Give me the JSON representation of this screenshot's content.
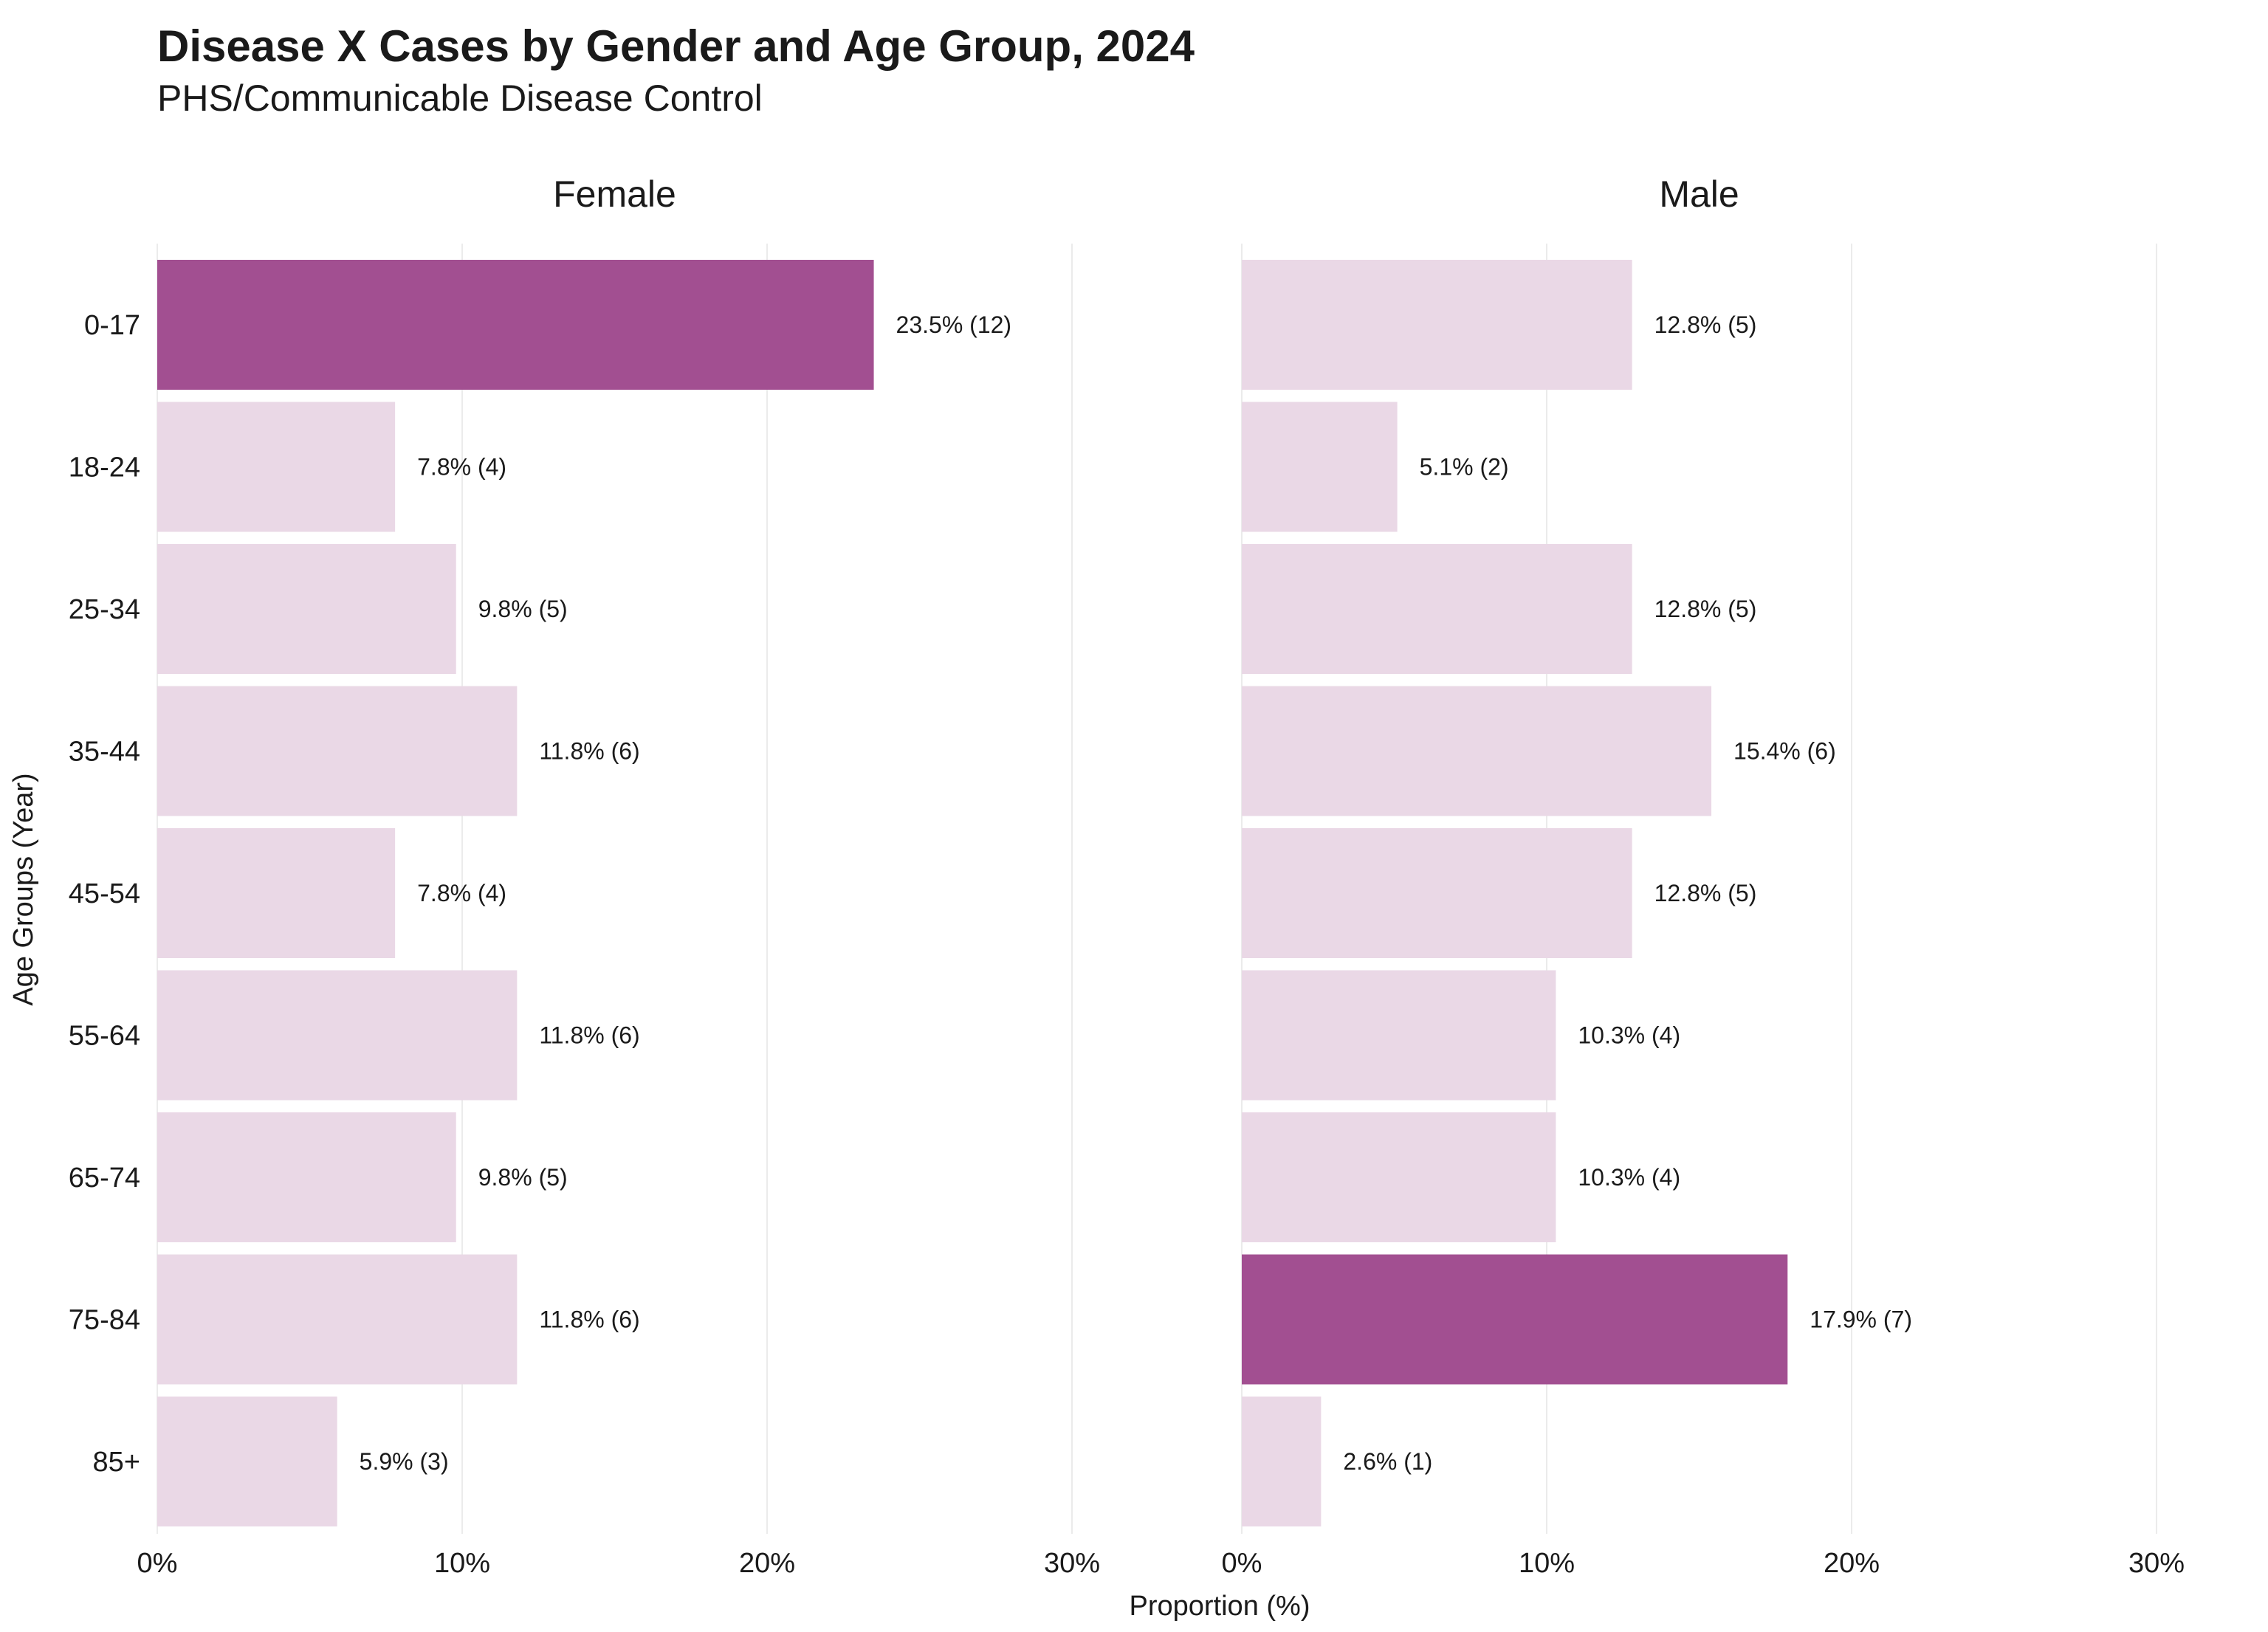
{
  "chart_data": {
    "type": "bar",
    "orientation": "horizontal",
    "title": "Disease X Cases by Gender and Age Group, 2024",
    "subtitle": "PHS/Communicable Disease Control",
    "xlabel": "Proportion (%)",
    "ylabel": "Age Groups (Year)",
    "xlim": [
      0,
      30
    ],
    "xticks": [
      "0%",
      "10%",
      "20%",
      "30%"
    ],
    "xtick_values": [
      0,
      10,
      20,
      30
    ],
    "grid": "vertical",
    "categories": [
      "0-17",
      "18-24",
      "25-34",
      "35-44",
      "45-54",
      "55-64",
      "65-74",
      "75-84",
      "85+"
    ],
    "colors": {
      "highlight": "#a24f91",
      "normal": "#ead8e6",
      "grid": "#ebebeb",
      "text": "#1a1a1a"
    },
    "panels": [
      {
        "name": "Female",
        "values": [
          23.5,
          7.8,
          9.8,
          11.8,
          7.8,
          11.8,
          9.8,
          11.8,
          5.9
        ],
        "labels": [
          "23.5% (12)",
          "7.8% (4)",
          "9.8% (5)",
          "11.8% (6)",
          "7.8% (4)",
          "11.8% (6)",
          "9.8% (5)",
          "11.8% (6)",
          "5.9% (3)"
        ],
        "highlight": [
          true,
          false,
          false,
          false,
          false,
          false,
          false,
          false,
          false
        ]
      },
      {
        "name": "Male",
        "values": [
          12.8,
          5.1,
          12.8,
          15.4,
          12.8,
          10.3,
          10.3,
          17.9,
          2.6
        ],
        "labels": [
          "12.8% (5)",
          "5.1% (2)",
          "12.8% (5)",
          "15.4% (6)",
          "12.8% (5)",
          "10.3% (4)",
          "10.3% (4)",
          "17.9% (7)",
          "2.6% (1)"
        ],
        "highlight": [
          false,
          false,
          false,
          false,
          false,
          false,
          false,
          true,
          false
        ]
      }
    ]
  }
}
